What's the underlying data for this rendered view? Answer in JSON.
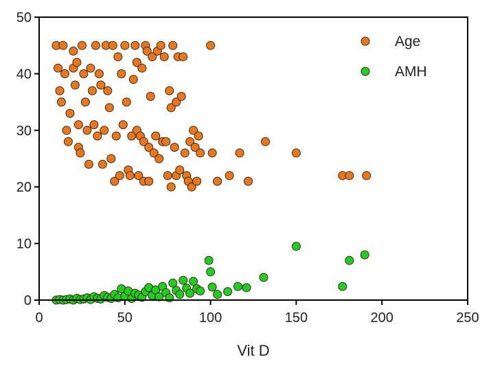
{
  "chart_data": {
    "type": "scatter",
    "title": "",
    "xlabel": "Vit D",
    "ylabel": "",
    "xlim": [
      0,
      250
    ],
    "ylim": [
      0,
      50
    ],
    "xticks": [
      0,
      50,
      100,
      150,
      200,
      250
    ],
    "yticks": [
      0,
      10,
      20,
      30,
      40,
      50
    ],
    "grid": false,
    "legend": "top-right",
    "series": [
      {
        "name": "Age",
        "color": "#e87722",
        "points": [
          [
            10,
            45
          ],
          [
            11,
            41
          ],
          [
            12,
            37
          ],
          [
            13,
            35
          ],
          [
            14,
            45
          ],
          [
            15,
            40
          ],
          [
            16,
            30
          ],
          [
            17,
            28
          ],
          [
            18,
            33
          ],
          [
            20,
            44
          ],
          [
            20,
            41
          ],
          [
            21,
            38
          ],
          [
            22,
            42
          ],
          [
            23,
            31
          ],
          [
            23,
            27
          ],
          [
            24,
            26
          ],
          [
            25,
            45
          ],
          [
            26,
            40
          ],
          [
            27,
            35
          ],
          [
            28,
            30
          ],
          [
            29,
            24
          ],
          [
            30,
            41
          ],
          [
            31,
            37
          ],
          [
            32,
            31
          ],
          [
            33,
            45
          ],
          [
            34,
            29
          ],
          [
            35,
            40
          ],
          [
            36,
            38
          ],
          [
            37,
            24
          ],
          [
            38,
            30
          ],
          [
            39,
            45
          ],
          [
            40,
            37
          ],
          [
            41,
            34
          ],
          [
            42,
            25
          ],
          [
            43,
            45
          ],
          [
            44,
            21
          ],
          [
            45,
            29
          ],
          [
            46,
            43
          ],
          [
            47,
            22
          ],
          [
            48,
            40
          ],
          [
            49,
            31
          ],
          [
            50,
            45
          ],
          [
            51,
            35
          ],
          [
            52,
            23
          ],
          [
            53,
            22
          ],
          [
            54,
            29
          ],
          [
            55,
            39
          ],
          [
            56,
            45
          ],
          [
            57,
            42
          ],
          [
            57,
            30
          ],
          [
            58,
            22
          ],
          [
            59,
            29
          ],
          [
            60,
            41
          ],
          [
            61,
            28
          ],
          [
            61,
            21
          ],
          [
            62,
            45
          ],
          [
            63,
            44
          ],
          [
            64,
            27
          ],
          [
            64,
            21
          ],
          [
            65,
            36
          ],
          [
            66,
            43
          ],
          [
            67,
            26
          ],
          [
            68,
            29
          ],
          [
            69,
            44
          ],
          [
            70,
            25
          ],
          [
            71,
            45
          ],
          [
            72,
            28
          ],
          [
            73,
            43
          ],
          [
            74,
            28
          ],
          [
            75,
            22
          ],
          [
            76,
            37
          ],
          [
            77,
            34
          ],
          [
            77,
            20
          ],
          [
            78,
            45
          ],
          [
            79,
            27
          ],
          [
            80,
            35
          ],
          [
            80,
            22
          ],
          [
            81,
            43
          ],
          [
            82,
            23
          ],
          [
            83,
            36
          ],
          [
            84,
            43
          ],
          [
            85,
            26
          ],
          [
            86,
            22
          ],
          [
            87,
            21
          ],
          [
            88,
            28
          ],
          [
            89,
            20
          ],
          [
            90,
            30
          ],
          [
            91,
            27
          ],
          [
            92,
            21
          ],
          [
            93,
            29
          ],
          [
            94,
            26
          ],
          [
            100,
            45
          ],
          [
            101,
            26
          ],
          [
            104,
            21
          ],
          [
            111,
            22
          ],
          [
            117,
            26
          ],
          [
            122,
            21
          ],
          [
            132,
            28
          ],
          [
            150,
            26
          ],
          [
            177,
            22
          ],
          [
            181,
            22
          ],
          [
            191,
            22
          ]
        ]
      },
      {
        "name": "AMH",
        "color": "#22cc22",
        "points": [
          [
            10,
            0.0
          ],
          [
            12,
            0.1
          ],
          [
            14,
            0.0
          ],
          [
            16,
            0.1
          ],
          [
            18,
            0.2
          ],
          [
            20,
            0.0
          ],
          [
            22,
            0.3
          ],
          [
            24,
            0.1
          ],
          [
            26,
            0.2
          ],
          [
            28,
            0.4
          ],
          [
            30,
            0.1
          ],
          [
            32,
            0.6
          ],
          [
            34,
            0.3
          ],
          [
            36,
            0.2
          ],
          [
            38,
            0.8
          ],
          [
            40,
            0.5
          ],
          [
            42,
            0.3
          ],
          [
            44,
            1.0
          ],
          [
            46,
            0.4
          ],
          [
            48,
            2.0
          ],
          [
            50,
            0.7
          ],
          [
            52,
            1.6
          ],
          [
            54,
            0.3
          ],
          [
            56,
            1.2
          ],
          [
            58,
            0.9
          ],
          [
            60,
            0.5
          ],
          [
            62,
            1.5
          ],
          [
            64,
            2.2
          ],
          [
            66,
            0.8
          ],
          [
            68,
            1.8
          ],
          [
            70,
            0.6
          ],
          [
            72,
            2.4
          ],
          [
            74,
            1.3
          ],
          [
            76,
            0.4
          ],
          [
            78,
            3.0
          ],
          [
            80,
            1.7
          ],
          [
            82,
            1.0
          ],
          [
            84,
            3.5
          ],
          [
            86,
            2.1
          ],
          [
            88,
            1.2
          ],
          [
            90,
            3.3
          ],
          [
            92,
            2.0
          ],
          [
            94,
            1.6
          ],
          [
            99,
            7.0
          ],
          [
            100,
            5.0
          ],
          [
            101,
            2.3
          ],
          [
            104,
            1.0
          ],
          [
            110,
            1.5
          ],
          [
            116,
            2.4
          ],
          [
            121,
            2.2
          ],
          [
            131,
            4.0
          ],
          [
            150,
            9.5
          ],
          [
            177,
            2.4
          ],
          [
            181,
            7.0
          ],
          [
            190,
            8.0
          ]
        ]
      }
    ]
  }
}
